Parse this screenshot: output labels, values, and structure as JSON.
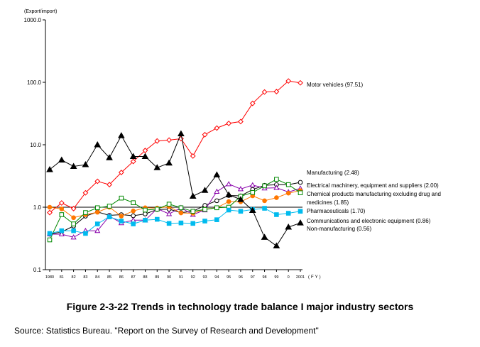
{
  "figure": {
    "caption": "Figure 2-3-22 Trends in technology trade balance I major industry sectors",
    "source": "Source: Statistics Bureau. \"Report on the Survey of Research and Development\""
  },
  "chart_data": {
    "type": "line",
    "ylabel": "(Export/import)",
    "xlabel": "(FY)",
    "yscale": "log",
    "ylim": [
      0.1,
      1000
    ],
    "y_tick_labels": [
      "1000.0",
      "100.0",
      "10.0",
      "1.0",
      "0.1"
    ],
    "y_tick_values": [
      1000,
      100,
      10,
      1,
      0.1
    ],
    "x": [
      "1980",
      "81",
      "82",
      "83",
      "84",
      "85",
      "86",
      "87",
      "88",
      "89",
      "90",
      "91",
      "92",
      "93",
      "94",
      "95",
      "96",
      "97",
      "98",
      "99",
      "0",
      "2001"
    ],
    "reference_line": 1.0,
    "grid": false,
    "legend_placement": "labels at right end of lines",
    "series": [
      {
        "name": "Motor vehicles (97.51)",
        "color": "#ff0000",
        "marker": "diamond-open",
        "values": [
          0.82,
          1.17,
          0.95,
          1.7,
          2.6,
          2.3,
          3.6,
          5.4,
          8.1,
          11.5,
          11.9,
          12.5,
          6.6,
          14.5,
          18.5,
          22,
          23.5,
          46,
          70,
          71,
          105,
          98
        ]
      },
      {
        "name": "Manufacturing (2.48)",
        "color": "#000000",
        "marker": "circle-open",
        "values": [
          0.37,
          0.4,
          0.5,
          0.72,
          0.84,
          0.74,
          0.76,
          0.73,
          0.78,
          0.92,
          0.93,
          0.82,
          0.86,
          1.07,
          1.27,
          1.54,
          1.52,
          1.92,
          2.24,
          2.3,
          2.3,
          2.5
        ]
      },
      {
        "name": "Electrical machinery, equipment and suppliers (2.00)",
        "color": "#8800aa",
        "marker": "triangle-open",
        "values": [
          0.37,
          0.37,
          0.33,
          0.42,
          0.42,
          0.72,
          0.56,
          0.62,
          0.62,
          0.95,
          0.78,
          0.98,
          0.76,
          0.9,
          1.78,
          2.35,
          1.96,
          2.26,
          2.02,
          2.05,
          1.75,
          2.0
        ]
      },
      {
        "name": "Chemical products manufacturing excluding drug and medicines (1.85)",
        "color": "#ff7700",
        "marker": "circle-filled",
        "values": [
          1.0,
          0.94,
          0.68,
          0.76,
          0.83,
          1.0,
          0.72,
          0.87,
          0.98,
          0.97,
          1.02,
          0.81,
          0.8,
          0.93,
          0.98,
          1.23,
          1.22,
          1.52,
          1.27,
          1.42,
          1.68,
          1.85
        ]
      },
      {
        "name": "Pharmaceuticals (1.70)",
        "color": "#008800",
        "marker": "square-open",
        "values": [
          0.3,
          0.76,
          0.54,
          0.82,
          0.98,
          1.04,
          1.4,
          1.18,
          0.9,
          0.93,
          1.12,
          0.98,
          0.86,
          0.92,
          0.98,
          1.0,
          1.5,
          1.72,
          2.2,
          2.8,
          2.3,
          1.7
        ]
      },
      {
        "name": "Communications and electronic equipment (0.86)",
        "color": "#00bbee",
        "marker": "square-filled",
        "values": [
          0.38,
          0.42,
          0.42,
          0.38,
          0.54,
          0.7,
          0.6,
          0.54,
          0.62,
          0.64,
          0.55,
          0.56,
          0.55,
          0.6,
          0.63,
          0.9,
          0.86,
          0.92,
          0.96,
          0.76,
          0.8,
          0.86
        ]
      },
      {
        "name": "Non-manufacturing (0.56)",
        "color": "#000000",
        "marker": "triangle-filled",
        "values": [
          4.0,
          5.7,
          4.5,
          4.8,
          10.0,
          6.2,
          14.0,
          6.5,
          6.5,
          4.3,
          5.1,
          15.0,
          1.5,
          1.86,
          3.3,
          1.58,
          1.33,
          0.89,
          0.33,
          0.24,
          0.48,
          0.56
        ]
      }
    ]
  }
}
